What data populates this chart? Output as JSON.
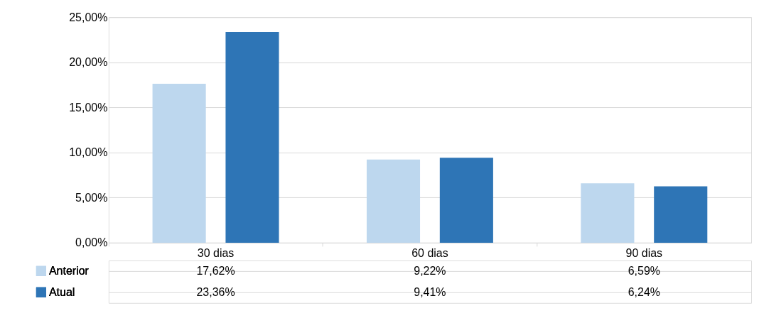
{
  "chart_data": {
    "type": "bar",
    "categories": [
      "30 dias",
      "60 dias",
      "90 dias"
    ],
    "series": [
      {
        "name": "Anterior",
        "color": "#bdd7ee",
        "values": [
          17.62,
          9.22,
          6.59
        ],
        "value_labels": [
          "17,62%",
          "9,22%",
          "6,59%"
        ]
      },
      {
        "name": "Atual",
        "color": "#2e75b6",
        "values": [
          23.36,
          9.41,
          6.24
        ],
        "value_labels": [
          "23,36%",
          "9,41%",
          "6,24%"
        ]
      }
    ],
    "ylim": [
      0,
      25
    ],
    "yticks": [
      {
        "value": 0,
        "label": "0,00%"
      },
      {
        "value": 5,
        "label": "5,00%"
      },
      {
        "value": 10,
        "label": "10,00%"
      },
      {
        "value": 15,
        "label": "15,00%"
      },
      {
        "value": 20,
        "label": "20,00%"
      },
      {
        "value": 25,
        "label": "25,00%"
      }
    ],
    "grid": "y",
    "legend": "bottom"
  }
}
